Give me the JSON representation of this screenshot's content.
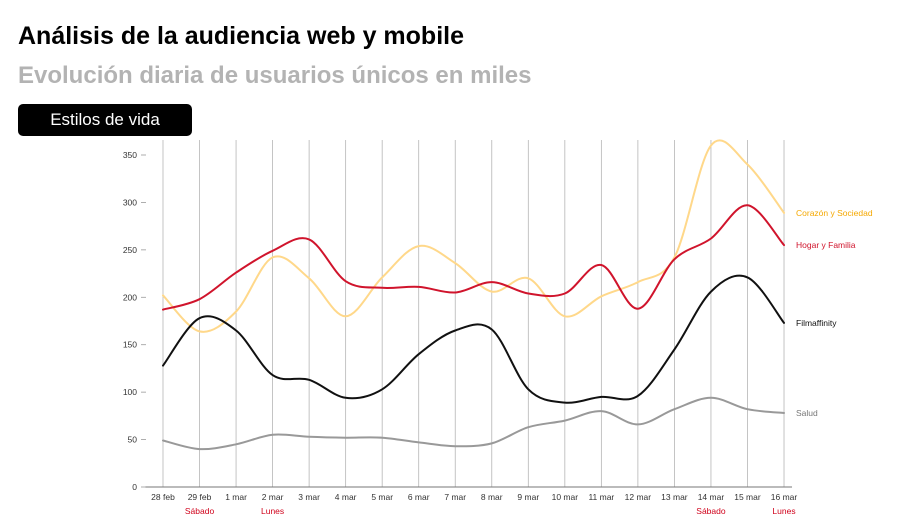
{
  "header": {
    "title": "Análisis de la audiencia web y mobile",
    "subtitle": "Evolución diaria de usuarios únicos en miles"
  },
  "tab": {
    "label": "Estilos de vida"
  },
  "chart_data": {
    "type": "line",
    "title": "Análisis de la audiencia web y mobile",
    "subtitle": "Evolución diaria de usuarios únicos en miles",
    "xlabel": "",
    "ylabel": "",
    "categories": [
      "28 feb",
      "29 feb",
      "1 mar",
      "2 mar",
      "3 mar",
      "4 mar",
      "5 mar",
      "6 mar",
      "7 mar",
      "8 mar",
      "9 mar",
      "10 mar",
      "11 mar",
      "12 mar",
      "13 mar",
      "14 mar",
      "15 mar",
      "16 mar"
    ],
    "day_annotations": [
      {
        "category": "29 feb",
        "label": "Sábado"
      },
      {
        "category": "2 mar",
        "label": "Lunes"
      },
      {
        "category": "14 mar",
        "label": "Sábado"
      },
      {
        "category": "16 mar",
        "label": "Lunes"
      }
    ],
    "yticks": [
      "0",
      "50",
      "100",
      "150",
      "200",
      "250",
      "300",
      "350"
    ],
    "ylim": [
      0,
      350
    ],
    "grid": "vertical",
    "legend": "right, at line ends",
    "series": [
      {
        "name": "Corazón y Sociedad",
        "color": "#ffd88a",
        "label_color": "#f5a800",
        "values": [
          202,
          164,
          185,
          242,
          220,
          180,
          221,
          254,
          236,
          206,
          220,
          180,
          201,
          216,
          242,
          360,
          340,
          289
        ]
      },
      {
        "name": "Hogar y Familia",
        "color": "#d0142c",
        "label_color": "#d0142c",
        "values": [
          187,
          198,
          226,
          249,
          261,
          217,
          210,
          211,
          205,
          216,
          204,
          204,
          234,
          188,
          240,
          262,
          297,
          255
        ]
      },
      {
        "name": "Filmaffinity",
        "color": "#111111",
        "label_color": "#111111",
        "values": [
          128,
          178,
          165,
          118,
          113,
          94,
          103,
          140,
          165,
          166,
          103,
          89,
          95,
          96,
          145,
          206,
          221,
          173
        ]
      },
      {
        "name": "Salud",
        "color": "#999999",
        "label_color": "#777777",
        "values": [
          49,
          40,
          45,
          55,
          53,
          52,
          52,
          47,
          43,
          46,
          63,
          70,
          80,
          66,
          82,
          94,
          82,
          78
        ]
      }
    ]
  }
}
